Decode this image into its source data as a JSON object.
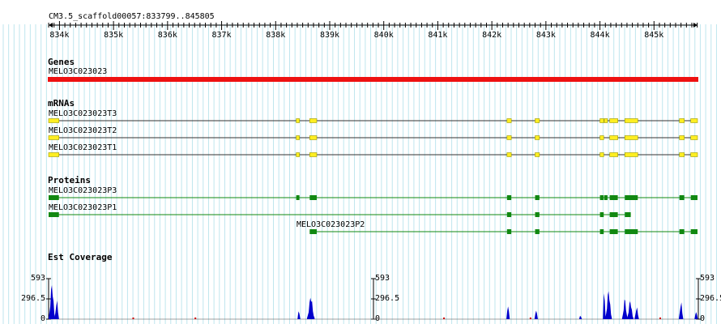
{
  "ruler": {
    "title": "CM3.5_scaffold00057:833799..845805",
    "ticks": [
      "834k",
      "835k",
      "836k",
      "837k",
      "838k",
      "839k",
      "840k",
      "841k",
      "842k",
      "843k",
      "844k",
      "845k"
    ]
  },
  "sections": {
    "genes": "Genes",
    "mrnas": "mRNAs",
    "proteins": "Proteins",
    "est": "Est Coverage"
  },
  "gene": {
    "label": "MELO3C023023",
    "color": "#ee1111"
  },
  "mrnas": [
    {
      "label": "MELO3C023023T3",
      "exons": [
        [
          833799,
          833990
        ],
        [
          838380,
          838440
        ],
        [
          838630,
          838760
        ],
        [
          842280,
          842360
        ],
        [
          842800,
          842880
        ],
        [
          844000,
          844070
        ],
        [
          844080,
          844130
        ],
        [
          844180,
          844330
        ],
        [
          844460,
          844700
        ],
        [
          845470,
          845560
        ],
        [
          845680,
          845805
        ]
      ]
    },
    {
      "label": "MELO3C023023T2",
      "exons": [
        [
          833799,
          833990
        ],
        [
          838380,
          838440
        ],
        [
          838630,
          838760
        ],
        [
          842280,
          842360
        ],
        [
          842800,
          842880
        ],
        [
          844000,
          844070
        ],
        [
          844180,
          844330
        ],
        [
          844460,
          844700
        ],
        [
          845470,
          845560
        ],
        [
          845680,
          845805
        ]
      ]
    },
    {
      "label": "MELO3C023023T1",
      "exons": [
        [
          833799,
          833990
        ],
        [
          838380,
          838440
        ],
        [
          838630,
          838760
        ],
        [
          842280,
          842360
        ],
        [
          842800,
          842880
        ],
        [
          844000,
          844070
        ],
        [
          844180,
          844330
        ],
        [
          844460,
          844700
        ],
        [
          845470,
          845560
        ],
        [
          845680,
          845805
        ]
      ]
    }
  ],
  "proteins": [
    {
      "label": "MELO3C023023P3",
      "exons": [
        [
          833799,
          833990
        ],
        [
          838380,
          838440
        ],
        [
          838630,
          838760
        ],
        [
          842280,
          842360
        ],
        [
          842800,
          842880
        ],
        [
          844000,
          844070
        ],
        [
          844080,
          844130
        ],
        [
          844180,
          844330
        ],
        [
          844460,
          844700
        ],
        [
          845470,
          845560
        ],
        [
          845680,
          845805
        ]
      ]
    },
    {
      "label": "MELO3C023023P1",
      "exons": [
        [
          833799,
          833990
        ],
        [
          842280,
          842360
        ],
        [
          842800,
          842880
        ],
        [
          844000,
          844070
        ],
        [
          844180,
          844330
        ],
        [
          844460,
          844570
        ]
      ]
    },
    {
      "label": "MELO3C023023P2",
      "exons": [
        [
          838630,
          838760
        ],
        [
          842280,
          842360
        ],
        [
          842800,
          842880
        ],
        [
          844000,
          844070
        ],
        [
          844180,
          844330
        ],
        [
          844460,
          844700
        ],
        [
          845470,
          845560
        ],
        [
          845680,
          845805
        ]
      ]
    }
  ],
  "est_scale": {
    "max": "593",
    "mid": "296.5",
    "min": "0"
  },
  "colors": {
    "grid": "#bfe6ee",
    "mrna_exon": "#ffee22",
    "mrna_outline": "#999900",
    "intron": "#333333",
    "protein": "#118811",
    "coverage": "#0000cc",
    "coverage_red": "#cc0000"
  }
}
